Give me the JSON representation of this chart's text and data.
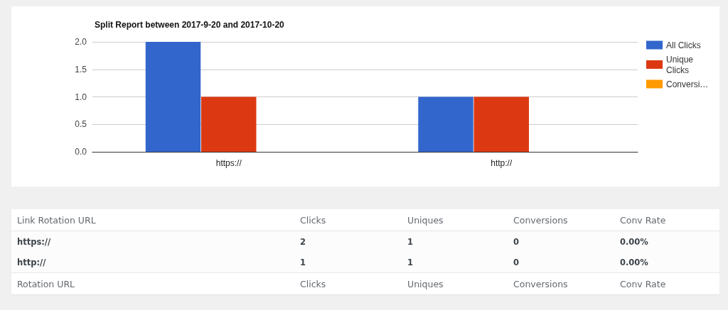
{
  "chart_data": [
    {
      "type": "bar",
      "title": "Split Report between 2017-9-20 and 2017-10-20",
      "categories": [
        "https://",
        "http://"
      ],
      "series": [
        {
          "name": "All Clicks",
          "color": "#3366cc",
          "values": [
            2,
            1
          ]
        },
        {
          "name": "Unique Clicks",
          "color": "#dc3912",
          "values": [
            1,
            1
          ]
        },
        {
          "name": "Conversi…",
          "color": "#ff9900",
          "values": [
            0,
            0
          ]
        }
      ],
      "ylim": [
        0,
        2
      ],
      "yticks": [
        {
          "value": 0,
          "label": "0.0"
        },
        0.5,
        {
          "value": 1,
          "label": "1.0"
        },
        1.5,
        {
          "value": 2,
          "label": "2.0"
        }
      ],
      "grid": "y",
      "legend": "right"
    },
    {
      "type": "other",
      "annotations": [
        "Link Rotation URL",
        "Clicks",
        "Uniques",
        "Conversions",
        "Conv Rate",
        "https://",
        "2",
        "1",
        "0",
        "0.00%",
        "http://",
        "1",
        "1",
        "0",
        "0.00%",
        "Rotation URL",
        "Clicks",
        "Uniques",
        "Conversions",
        "Conv Rate"
      ]
    }
  ]
}
